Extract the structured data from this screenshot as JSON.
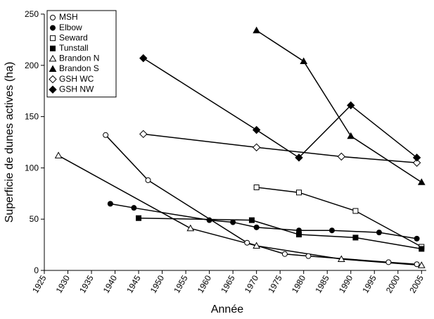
{
  "chart_data": {
    "type": "line",
    "x_label": "Année",
    "y_label": "Superficie de dunes actives (ha)",
    "xlim": [
      1925,
      2006
    ],
    "ylim": [
      0,
      250
    ],
    "xticks": [
      1925,
      1930,
      1935,
      1940,
      1945,
      1950,
      1955,
      1960,
      1965,
      1970,
      1975,
      1980,
      1985,
      1990,
      1995,
      2000,
      2005
    ],
    "yticks": [
      0,
      50,
      100,
      150,
      200,
      250
    ],
    "grid": false,
    "legend": "upper left",
    "series": [
      {
        "name": "MSH",
        "color": "#000000",
        "marker": "circle",
        "filled": false,
        "x": [
          1938,
          1947,
          1968,
          1976,
          1981,
          1998,
          2004
        ],
        "values": [
          132,
          88,
          27,
          16,
          14,
          8,
          6
        ]
      },
      {
        "name": "Elbow",
        "color": "#000000",
        "marker": "circle",
        "filled": true,
        "x": [
          1939,
          1944,
          1960,
          1965,
          1970,
          1979,
          1986,
          1996,
          2004
        ],
        "values": [
          65,
          61,
          49,
          47,
          42,
          39,
          39,
          37,
          31
        ]
      },
      {
        "name": "Seward",
        "color": "#000000",
        "marker": "square",
        "filled": false,
        "x": [
          1970,
          1979,
          1991,
          2005
        ],
        "values": [
          81,
          76,
          58,
          23
        ]
      },
      {
        "name": "Tunstall",
        "color": "#000000",
        "marker": "square",
        "filled": true,
        "x": [
          1945,
          1969,
          1979,
          1991,
          2005
        ],
        "values": [
          51,
          49,
          35,
          32,
          21
        ]
      },
      {
        "name": "Brandon N",
        "color": "#000000",
        "marker": "triangle",
        "filled": false,
        "x": [
          1928,
          1956,
          1970,
          1988,
          2005
        ],
        "values": [
          112,
          41,
          24,
          11,
          5
        ]
      },
      {
        "name": "Brandon S",
        "color": "#000000",
        "marker": "triangle",
        "filled": true,
        "x": [
          1970,
          1980,
          1990,
          2005
        ],
        "values": [
          234,
          204,
          131,
          86
        ]
      },
      {
        "name": "GSH WC",
        "color": "#000000",
        "marker": "diamond",
        "filled": false,
        "x": [
          1946,
          1970,
          1988,
          2004
        ],
        "values": [
          133,
          120,
          111,
          105
        ]
      },
      {
        "name": "GSH NW",
        "color": "#000000",
        "marker": "diamond",
        "filled": true,
        "x": [
          1946,
          1970,
          1979,
          1990,
          2004
        ],
        "values": [
          207,
          137,
          110,
          161,
          110
        ]
      }
    ]
  }
}
